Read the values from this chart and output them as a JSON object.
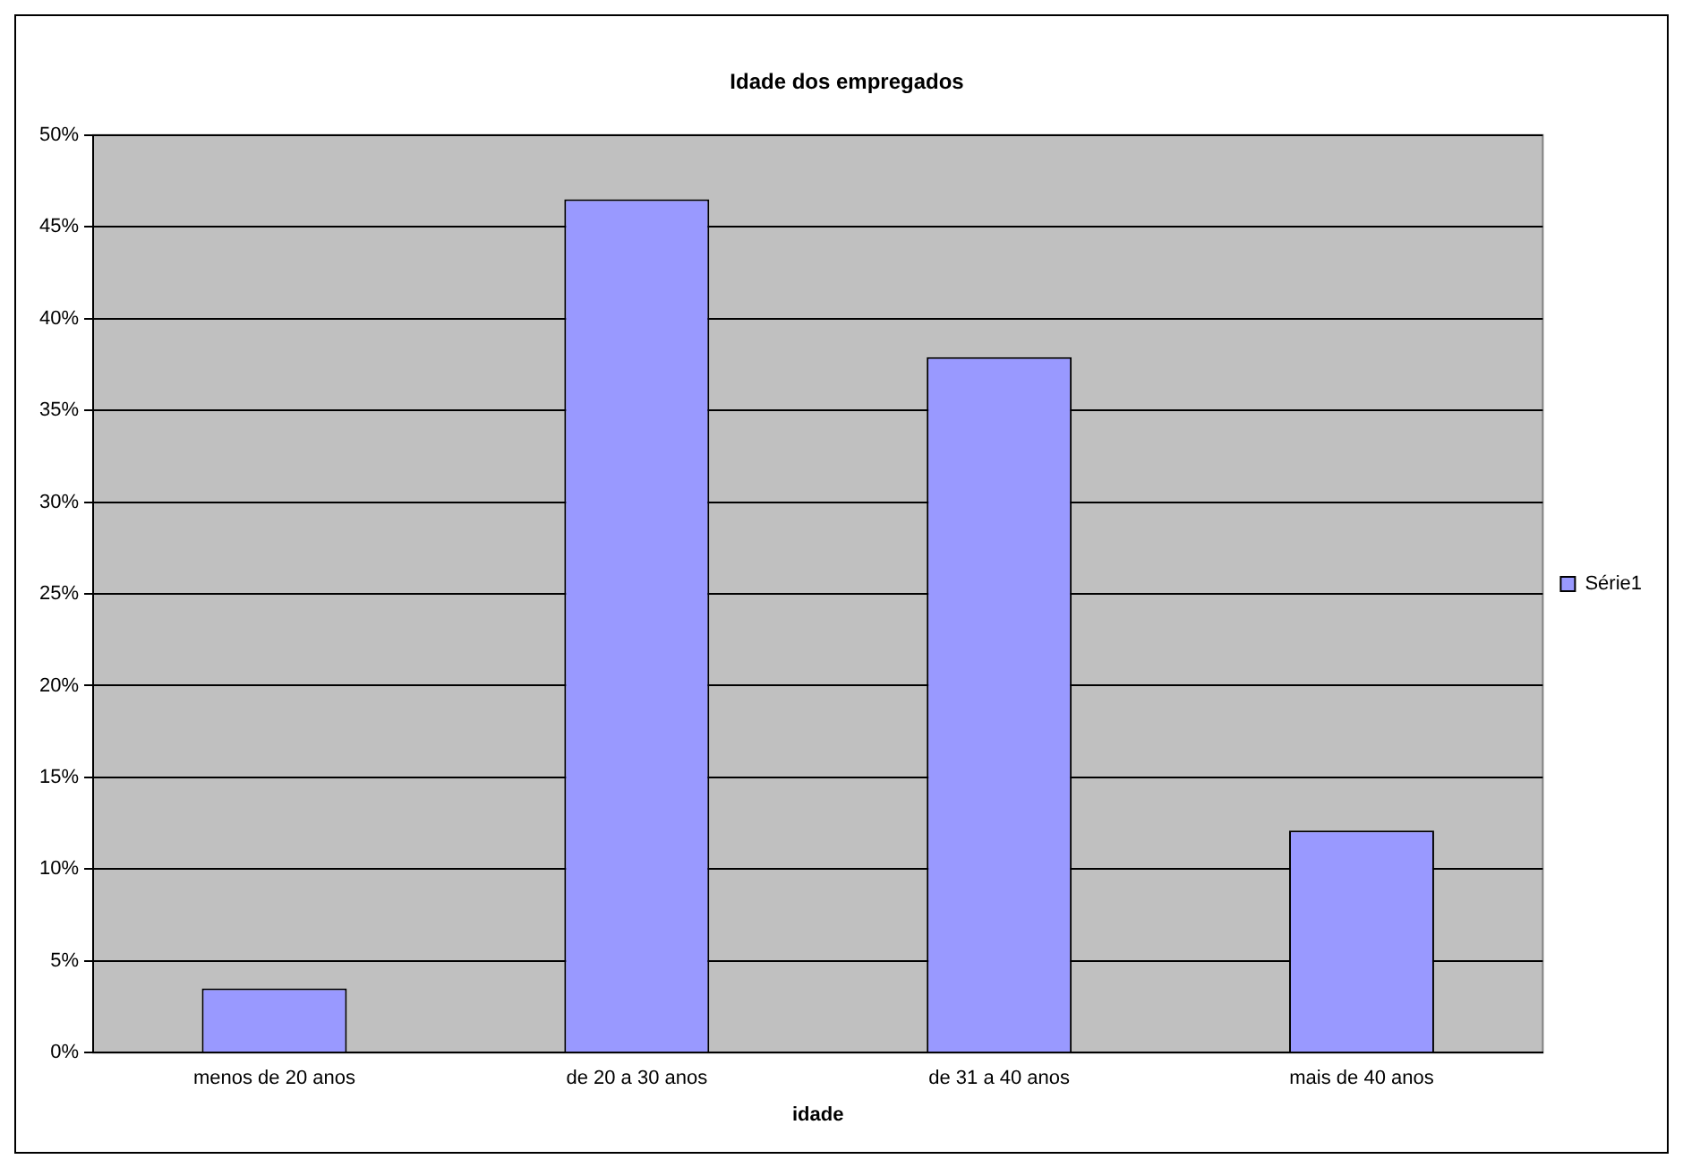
{
  "chart_data": {
    "type": "bar",
    "title": "Idade dos empregados",
    "xlabel": "idade",
    "categories": [
      "menos de 20 anos",
      "de 20 a 30 anos",
      "de 31 a 40 anos",
      "mais de 40 anos"
    ],
    "series": [
      {
        "name": "Série1",
        "color": "#9999ff",
        "values": [
          3.5,
          46.5,
          37.9,
          12.1
        ]
      }
    ],
    "ylim": [
      0,
      50
    ],
    "yticks": [
      {
        "value": 0,
        "label": "0%"
      },
      {
        "value": 5,
        "label": "5%"
      },
      {
        "value": 10,
        "label": "10%"
      },
      {
        "value": 15,
        "label": "15%"
      },
      {
        "value": 20,
        "label": "20%"
      },
      {
        "value": 25,
        "label": "25%"
      },
      {
        "value": 30,
        "label": "30%"
      },
      {
        "value": 35,
        "label": "35%"
      },
      {
        "value": 40,
        "label": "40%"
      },
      {
        "value": 45,
        "label": "45%"
      },
      {
        "value": 50,
        "label": "50%"
      }
    ],
    "grid": "y",
    "legend": "right"
  }
}
